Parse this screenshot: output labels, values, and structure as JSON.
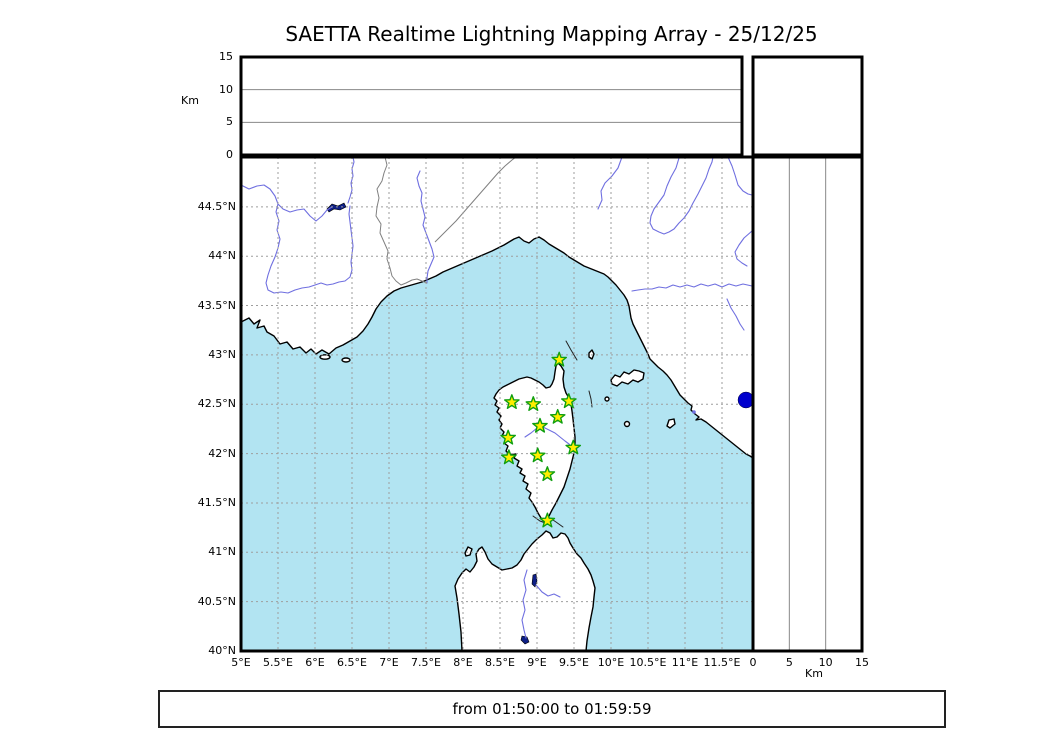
{
  "title": "SAETTA Realtime Lightning Mapping Array - 25/12/25",
  "time_label": "from 01:50:00 to 01:59:59",
  "axes": {
    "altitude_left": {
      "unit": "Km",
      "ticks": [
        "0",
        "5",
        "10",
        "15"
      ],
      "gridlines": [
        5,
        10
      ]
    },
    "distance_right": {
      "unit": "Km",
      "ticks": [
        "0",
        "5",
        "10",
        "15"
      ],
      "gridlines": [
        5,
        10
      ]
    },
    "latitude": {
      "ticks": [
        "40°N",
        "40.5°N",
        "41°N",
        "41.5°N",
        "42°N",
        "42.5°N",
        "43°N",
        "43.5°N",
        "44°N",
        "44.5°N"
      ]
    },
    "longitude": {
      "ticks": [
        "5°E",
        "5.5°E",
        "6°E",
        "6.5°E",
        "7°E",
        "7.5°E",
        "8°E",
        "8.5°E",
        "9°E",
        "9.5°E",
        "10°E",
        "10.5°E",
        "11°E",
        "11.5°E"
      ]
    }
  },
  "chart_data": {
    "type": "scatter",
    "title": "SAETTA Realtime Lightning Mapping Array - 25/12/25",
    "subtitle": "from 01:50:00 to 01:59:59",
    "panels": [
      {
        "name": "map",
        "x": "longitude_deg_E",
        "y": "latitude_deg_N",
        "xlim": [
          5,
          11.92
        ],
        "ylim": [
          40,
          45.0
        ],
        "grid": true,
        "xticks": [
          5,
          5.5,
          6,
          6.5,
          7,
          7.5,
          8,
          8.5,
          9,
          9.5,
          10,
          10.5,
          11,
          11.5
        ],
        "yticks": [
          40,
          40.5,
          41,
          41.5,
          42,
          42.5,
          43,
          43.5,
          44,
          44.5
        ]
      },
      {
        "name": "altitude-vs-longitude",
        "ylabel": "Km",
        "ylim": [
          0,
          15
        ],
        "gridlines": [
          5,
          10
        ],
        "points": []
      },
      {
        "name": "altitude-vs-latitude",
        "xlabel": "Km",
        "xlim": [
          0,
          15
        ],
        "gridlines": [
          5,
          10
        ],
        "points": []
      }
    ],
    "stations": {
      "marker": "star",
      "points_lon_lat": [
        [
          9.3,
          42.95
        ],
        [
          8.66,
          42.52
        ],
        [
          8.95,
          42.5
        ],
        [
          9.43,
          42.53
        ],
        [
          9.28,
          42.37
        ],
        [
          9.04,
          42.28
        ],
        [
          8.61,
          42.16
        ],
        [
          9.49,
          42.06
        ],
        [
          9.01,
          41.98
        ],
        [
          8.62,
          41.96
        ],
        [
          9.14,
          41.79
        ],
        [
          9.14,
          41.32
        ]
      ]
    },
    "lightning_sources": [],
    "legend_position": "none"
  },
  "colors": {
    "sea": "#b2e4f2",
    "land": "#ffffff",
    "coastline": "#000000",
    "river": "#6f6fe0",
    "country_border": "#808080",
    "grid": "#9e9e9e",
    "lake": "#0e1f86",
    "bolsena_lake_dot": "#0000cd",
    "station_fill": "#ffee00",
    "station_stroke": "#0f9f0f"
  }
}
